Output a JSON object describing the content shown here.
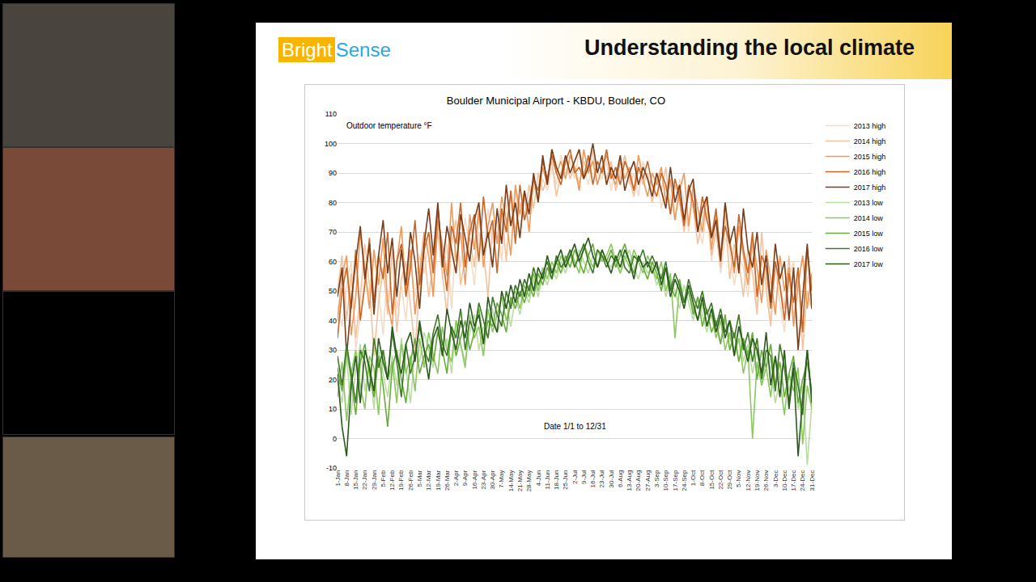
{
  "slide": {
    "logo": [
      "Bright",
      "Sense"
    ],
    "title": "Understanding the local climate"
  },
  "chart_data": {
    "type": "line",
    "title": "Boulder Municipal Airport - KBDU, Boulder, CO",
    "ylabel": "Outdoor temperature °F",
    "xlabel": "Date 1/1 to 12/31",
    "categories": [
      "1-Jan",
      null,
      "8-Jan",
      null,
      "15-Jan",
      null,
      "22-Jan",
      null,
      "29-Jan",
      null,
      "5-Feb",
      null,
      "12-Feb",
      null,
      "19-Feb",
      null,
      "26-Feb",
      null,
      "5-Mar",
      null,
      "12-Mar",
      null,
      "19-Mar",
      null,
      "26-Mar",
      null,
      "2-Apr",
      null,
      "9-Apr",
      null,
      "16-Apr",
      null,
      "23-Apr",
      null,
      "30-Apr",
      null,
      "7-May",
      null,
      "14-May",
      null,
      "21-May",
      null,
      "28-May",
      null,
      "4-Jun",
      null,
      "11-Jun",
      null,
      "18-Jun",
      null,
      "25-Jun",
      null,
      "2-Jul",
      null,
      "9-Jul",
      null,
      "16-Jul",
      null,
      "23-Jul",
      null,
      "30-Jul",
      null,
      "6-Aug",
      null,
      "13-Aug",
      null,
      "20-Aug",
      null,
      "27-Aug",
      null,
      "3-Sep",
      null,
      "10-Sep",
      null,
      "17-Sep",
      null,
      "24-Sep",
      null,
      "1-Oct",
      null,
      "8-Oct",
      null,
      "15-Oct",
      null,
      "22-Oct",
      null,
      "29-Oct",
      null,
      "5-Nov",
      null,
      "12-Nov",
      null,
      "19-Nov",
      null,
      "26-Nov",
      null,
      "3-Dec",
      null,
      "10-Dec",
      null,
      "17-Dec",
      null,
      "24-Dec",
      null,
      "31-Dec"
    ],
    "series": [
      {
        "name": "2013 high",
        "color": "#f3dcc6",
        "values": [
          45,
          38,
          52,
          60,
          30,
          42,
          55,
          48,
          62,
          50,
          35,
          58,
          66,
          44,
          52,
          40,
          60,
          48,
          62,
          56,
          68,
          50,
          72,
          54,
          66,
          44,
          70,
          58,
          75,
          64,
          52,
          70,
          62,
          78,
          66,
          74,
          60,
          80,
          72,
          84,
          68,
          82,
          76,
          86,
          80,
          88,
          84,
          92,
          86,
          96,
          90,
          94,
          88,
          98,
          92,
          86,
          95,
          90,
          88,
          94,
          84,
          92,
          88,
          96,
          86,
          90,
          82,
          94,
          88,
          84,
          90,
          78,
          86,
          82,
          74,
          88,
          80,
          70,
          84,
          72,
          66,
          78,
          60,
          72,
          56,
          68,
          64,
          52,
          62,
          58,
          48,
          66,
          44,
          60,
          54,
          40,
          58,
          46,
          36,
          54,
          60,
          34,
          42,
          55,
          48
        ]
      },
      {
        "name": "2014 high",
        "color": "#f2c39e",
        "values": [
          50,
          62,
          40,
          56,
          34,
          48,
          66,
          52,
          28,
          46,
          58,
          42,
          64,
          36,
          54,
          60,
          45,
          30,
          52,
          64,
          48,
          60,
          70,
          56,
          42,
          66,
          74,
          52,
          62,
          68,
          58,
          76,
          64,
          48,
          72,
          66,
          78,
          60,
          84,
          70,
          80,
          74,
          86,
          78,
          90,
          84,
          88,
          94,
          82,
          90,
          96,
          88,
          92,
          86,
          94,
          90,
          98,
          86,
          92,
          88,
          94,
          84,
          90,
          96,
          88,
          82,
          92,
          86,
          90,
          80,
          88,
          84,
          92,
          76,
          86,
          80,
          70,
          84,
          78,
          66,
          74,
          82,
          62,
          70,
          58,
          76,
          54,
          66,
          60,
          48,
          64,
          56,
          42,
          70,
          50,
          38,
          60,
          52,
          44,
          62,
          40,
          56,
          30,
          50,
          44
        ]
      },
      {
        "name": "2015 high",
        "color": "#ee9a5c",
        "values": [
          40,
          55,
          62,
          35,
          48,
          70,
          58,
          44,
          64,
          52,
          68,
          46,
          38,
          60,
          72,
          50,
          64,
          42,
          56,
          70,
          62,
          48,
          74,
          66,
          55,
          80,
          60,
          70,
          52,
          76,
          64,
          78,
          58,
          72,
          80,
          66,
          82,
          74,
          62,
          86,
          76,
          84,
          70,
          88,
          82,
          92,
          86,
          98,
          90,
          94,
          88,
          96,
          92,
          84,
          98,
          90,
          94,
          86,
          92,
          96,
          90,
          86,
          94,
          88,
          92,
          84,
          96,
          88,
          82,
          90,
          86,
          92,
          80,
          88,
          74,
          84,
          90,
          72,
          86,
          78,
          70,
          82,
          64,
          76,
          60,
          80,
          68,
          56,
          72,
          62,
          52,
          68,
          58,
          46,
          64,
          54,
          42,
          62,
          50,
          58,
          38,
          52,
          62,
          44,
          56
        ]
      },
      {
        "name": "2016 high",
        "color": "#c8672a",
        "values": [
          34,
          50,
          58,
          44,
          64,
          40,
          52,
          68,
          46,
          62,
          54,
          70,
          42,
          60,
          66,
          48,
          58,
          74,
          52,
          64,
          70,
          56,
          78,
          62,
          50,
          72,
          66,
          80,
          58,
          70,
          76,
          60,
          82,
          68,
          74,
          56,
          78,
          70,
          84,
          66,
          86,
          74,
          80,
          88,
          84,
          94,
          88,
          96,
          90,
          86,
          94,
          98,
          90,
          92,
          88,
          96,
          86,
          94,
          90,
          98,
          88,
          92,
          86,
          94,
          90,
          84,
          92,
          88,
          94,
          86,
          82,
          90,
          86,
          76,
          88,
          82,
          72,
          86,
          80,
          70,
          82,
          74,
          68,
          78,
          62,
          72,
          66,
          58,
          76,
          64,
          56,
          70,
          48,
          62,
          58,
          44,
          60,
          52,
          40,
          56,
          46,
          58,
          36,
          64,
          50
        ]
      },
      {
        "name": "2017 high",
        "color": "#7a3d1a",
        "values": [
          48,
          58,
          28,
          46,
          60,
          72,
          54,
          66,
          42,
          62,
          74,
          56,
          68,
          48,
          64,
          52,
          70,
          60,
          44,
          66,
          78,
          62,
          80,
          58,
          72,
          64,
          56,
          76,
          68,
          60,
          74,
          80,
          62,
          70,
          58,
          78,
          66,
          86,
          72,
          80,
          68,
          84,
          76,
          90,
          80,
          96,
          86,
          98,
          92,
          88,
          96,
          90,
          94,
          98,
          88,
          92,
          100,
          90,
          96,
          86,
          92,
          88,
          96,
          84,
          90,
          94,
          86,
          92,
          88,
          82,
          90,
          84,
          78,
          92,
          80,
          86,
          74,
          84,
          88,
          70,
          78,
          82,
          68,
          74,
          60,
          80,
          66,
          72,
          56,
          78,
          64,
          58,
          70,
          52,
          62,
          46,
          66,
          54,
          60,
          40,
          58,
          30,
          48,
          66,
          44
        ]
      },
      {
        "name": "2013 low",
        "color": "#b9dca2",
        "values": [
          20,
          12,
          28,
          8,
          24,
          32,
          16,
          26,
          10,
          30,
          22,
          14,
          28,
          18,
          34,
          24,
          12,
          30,
          26,
          36,
          30,
          24,
          38,
          28,
          34,
          22,
          40,
          32,
          26,
          36,
          42,
          30,
          38,
          34,
          44,
          36,
          40,
          46,
          38,
          48,
          42,
          50,
          46,
          54,
          48,
          56,
          52,
          58,
          54,
          60,
          56,
          62,
          58,
          64,
          60,
          56,
          62,
          58,
          64,
          60,
          58,
          62,
          56,
          60,
          64,
          58,
          54,
          60,
          56,
          58,
          52,
          56,
          48,
          54,
          50,
          44,
          52,
          46,
          40,
          48,
          42,
          36,
          44,
          38,
          32,
          40,
          34,
          30,
          38,
          26,
          32,
          22,
          30,
          18,
          28,
          24,
          12,
          20,
          26,
          16,
          24,
          10,
          18,
          -9,
          12
        ]
      },
      {
        "name": "2014 low",
        "color": "#8cc860",
        "values": [
          14,
          26,
          6,
          22,
          30,
          18,
          10,
          28,
          24,
          8,
          30,
          20,
          26,
          12,
          32,
          22,
          28,
          16,
          34,
          24,
          36,
          28,
          22,
          38,
          30,
          26,
          40,
          32,
          24,
          42,
          34,
          38,
          28,
          44,
          36,
          42,
          48,
          40,
          46,
          50,
          44,
          52,
          48,
          56,
          50,
          58,
          54,
          60,
          56,
          62,
          58,
          64,
          60,
          56,
          66,
          62,
          58,
          64,
          60,
          62,
          66,
          60,
          56,
          62,
          58,
          64,
          60,
          56,
          62,
          58,
          54,
          60,
          50,
          56,
          34,
          52,
          46,
          50,
          44,
          40,
          46,
          38,
          42,
          34,
          40,
          30,
          36,
          28,
          34,
          22,
          30,
          0,
          26,
          18,
          24,
          14,
          28,
          20,
          8,
          22,
          16,
          24,
          -2,
          18,
          10
        ]
      },
      {
        "name": "2015 low",
        "color": "#6aac3c",
        "values": [
          24,
          16,
          30,
          20,
          8,
          26,
          32,
          22,
          14,
          28,
          18,
          4,
          24,
          30,
          20,
          12,
          26,
          34,
          22,
          28,
          32,
          26,
          36,
          30,
          22,
          38,
          28,
          34,
          40,
          30,
          36,
          44,
          32,
          40,
          38,
          46,
          42,
          36,
          48,
          44,
          50,
          46,
          52,
          48,
          56,
          52,
          58,
          54,
          60,
          56,
          62,
          58,
          64,
          60,
          56,
          62,
          66,
          58,
          62,
          60,
          64,
          58,
          62,
          66,
          60,
          56,
          62,
          58,
          54,
          60,
          56,
          50,
          58,
          52,
          48,
          54,
          46,
          50,
          42,
          48,
          38,
          44,
          36,
          40,
          32,
          42,
          30,
          36,
          26,
          34,
          28,
          36,
          20,
          30,
          24,
          32,
          18,
          26,
          14,
          22,
          28,
          12,
          20,
          26,
          16
        ]
      },
      {
        "name": "2016 low",
        "color": "#3e7a28",
        "values": [
          28,
          18,
          32,
          22,
          12,
          30,
          26,
          16,
          34,
          24,
          30,
          20,
          36,
          26,
          14,
          32,
          22,
          28,
          38,
          30,
          26,
          36,
          42,
          32,
          28,
          38,
          34,
          44,
          30,
          40,
          36,
          46,
          40,
          34,
          48,
          42,
          38,
          50,
          44,
          52,
          48,
          54,
          50,
          58,
          52,
          56,
          60,
          54,
          62,
          58,
          60,
          64,
          58,
          62,
          66,
          60,
          56,
          64,
          62,
          58,
          62,
          60,
          64,
          58,
          56,
          62,
          60,
          64,
          58,
          62,
          58,
          54,
          60,
          50,
          56,
          52,
          46,
          54,
          48,
          44,
          50,
          42,
          46,
          38,
          44,
          36,
          40,
          34,
          42,
          30,
          36,
          26,
          34,
          20,
          30,
          28,
          16,
          32,
          24,
          12,
          26,
          18,
          8,
          30,
          14
        ]
      },
      {
        "name": "2017 low",
        "color": "#2a5a1c",
        "values": [
          22,
          4,
          -6,
          18,
          28,
          12,
          30,
          24,
          16,
          34,
          26,
          20,
          38,
          28,
          22,
          32,
          36,
          26,
          40,
          30,
          20,
          34,
          38,
          28,
          44,
          36,
          30,
          40,
          34,
          46,
          38,
          42,
          32,
          48,
          40,
          36,
          50,
          44,
          52,
          46,
          54,
          48,
          56,
          50,
          58,
          54,
          62,
          56,
          60,
          64,
          58,
          62,
          66,
          60,
          64,
          68,
          62,
          58,
          64,
          60,
          56,
          62,
          58,
          64,
          60,
          54,
          62,
          58,
          60,
          56,
          60,
          52,
          58,
          48,
          54,
          50,
          44,
          52,
          46,
          40,
          48,
          38,
          44,
          36,
          42,
          34,
          40,
          28,
          38,
          32,
          26,
          34,
          30,
          22,
          36,
          18,
          28,
          14,
          30,
          10,
          24,
          -6,
          14,
          30,
          12
        ]
      }
    ],
    "ylim": [
      -10,
      110
    ],
    "yticks": [
      -10,
      0,
      10,
      20,
      30,
      40,
      50,
      60,
      70,
      80,
      90,
      100,
      110
    ],
    "grid": true,
    "legend": "right"
  }
}
